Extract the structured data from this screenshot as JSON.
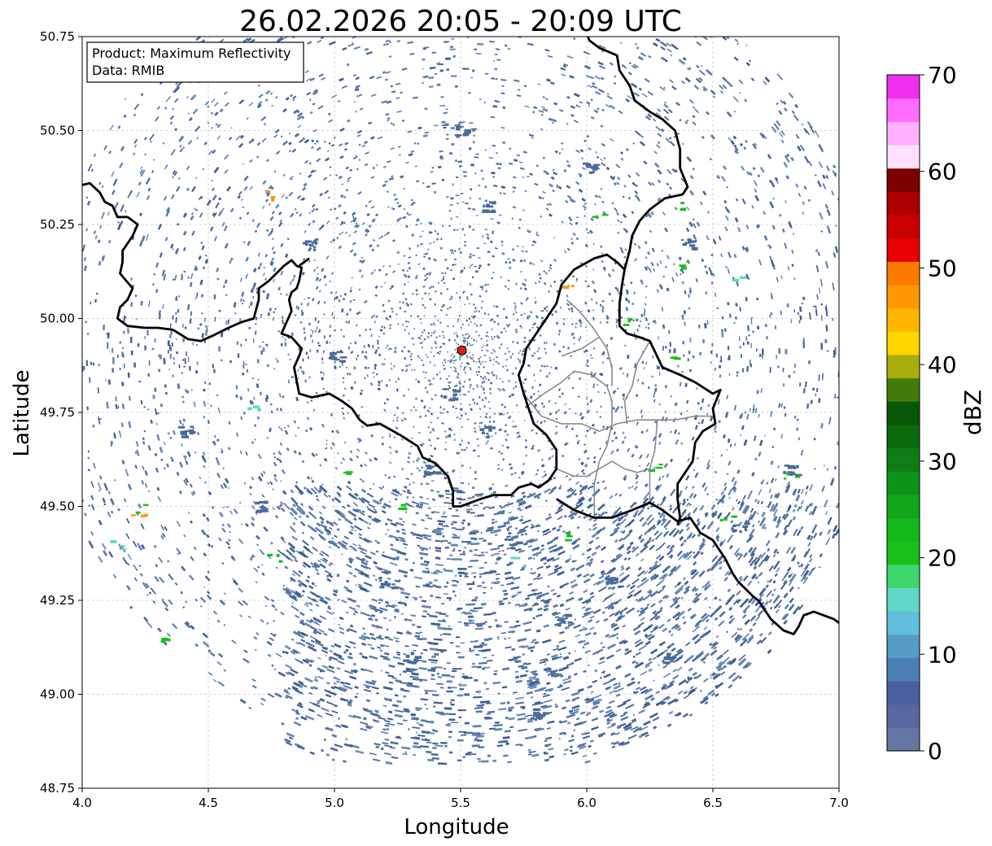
{
  "title": "26.02.2026 20:05 - 20:09 UTC",
  "xlabel": "Longitude",
  "ylabel": "Latitude",
  "info_box": {
    "line1": "Product: Maximum Reflectivity",
    "line2": "Data: RMIB"
  },
  "x_ticks": [
    "4.0",
    "4.5",
    "5.0",
    "5.5",
    "6.0",
    "6.5",
    "7.0"
  ],
  "y_ticks": [
    "50.75",
    "50.50",
    "50.25",
    "50.00",
    "49.75",
    "49.50",
    "49.25",
    "49.00",
    "48.75"
  ],
  "colorbar": {
    "label": "dBZ",
    "ticks": [
      "0",
      "10",
      "20",
      "30",
      "40",
      "50",
      "60",
      "70"
    ],
    "colors": [
      "#6476a3",
      "#5867a0",
      "#4960a0",
      "#4b7eb3",
      "#569cc4",
      "#62bedb",
      "#5fd8c5",
      "#3fd56d",
      "#1ac01a",
      "#13b81a",
      "#10a51a",
      "#0e931a",
      "#0c7e14",
      "#0b6a0c",
      "#075706",
      "#437b0b",
      "#a9ad0b",
      "#fdd500",
      "#fdb500",
      "#fd9800",
      "#fd7a00",
      "#e60000",
      "#c90000",
      "#ac0000",
      "#7d0000",
      "#ffe0ff",
      "#ffb0ff",
      "#ff6cff",
      "#ee2eee"
    ]
  },
  "chart_data": {
    "type": "map",
    "title": "26.02.2026 20:05 - 20:09 UTC",
    "xlabel": "Longitude",
    "ylabel": "Latitude",
    "xlim": [
      4.0,
      7.0
    ],
    "ylim": [
      48.75,
      50.75
    ],
    "grid": true,
    "radar_site": {
      "lon": 5.505,
      "lat": 49.915
    },
    "colorbar_range_dbz": [
      0,
      70
    ],
    "borders": [
      [
        [
          4.0,
          50.355
        ],
        [
          4.03,
          50.36
        ],
        [
          4.07,
          50.335
        ],
        [
          4.09,
          50.31
        ],
        [
          4.12,
          50.3
        ],
        [
          4.14,
          50.27
        ],
        [
          4.18,
          50.27
        ],
        [
          4.2,
          50.26
        ],
        [
          4.22,
          50.25
        ],
        [
          4.2,
          50.22
        ],
        [
          4.18,
          50.2
        ],
        [
          4.16,
          50.18
        ],
        [
          4.16,
          50.15
        ],
        [
          4.15,
          50.12
        ],
        [
          4.2,
          50.08
        ],
        [
          4.18,
          50.05
        ],
        [
          4.15,
          50.03
        ],
        [
          4.14,
          50.0
        ],
        [
          4.18,
          49.98
        ],
        [
          4.25,
          49.975
        ],
        [
          4.3,
          49.975
        ],
        [
          4.36,
          49.97
        ],
        [
          4.42,
          49.945
        ],
        [
          4.47,
          49.94
        ],
        [
          4.52,
          49.955
        ],
        [
          4.58,
          49.975
        ],
        [
          4.63,
          49.99
        ],
        [
          4.68,
          50.0
        ],
        [
          4.7,
          50.05
        ],
        [
          4.7,
          50.08
        ],
        [
          4.74,
          50.1
        ],
        [
          4.8,
          50.14
        ],
        [
          4.83,
          50.155
        ],
        [
          4.85,
          50.14
        ],
        [
          4.87,
          50.135
        ],
        [
          4.86,
          50.1
        ],
        [
          4.85,
          50.08
        ],
        [
          4.83,
          50.07
        ],
        [
          4.82,
          50.05
        ],
        [
          4.83,
          50.02
        ],
        [
          4.81,
          49.99
        ],
        [
          4.79,
          49.96
        ],
        [
          4.83,
          49.95
        ],
        [
          4.87,
          49.92
        ],
        [
          4.86,
          49.9
        ],
        [
          4.84,
          49.87
        ],
        [
          4.86,
          49.8
        ],
        [
          4.91,
          49.79
        ],
        [
          4.98,
          49.8
        ],
        [
          5.03,
          49.78
        ],
        [
          5.07,
          49.76
        ],
        [
          5.1,
          49.73
        ],
        [
          5.13,
          49.715
        ],
        [
          5.18,
          49.72
        ],
        [
          5.26,
          49.69
        ],
        [
          5.33,
          49.66
        ],
        [
          5.35,
          49.63
        ],
        [
          5.4,
          49.615
        ],
        [
          5.45,
          49.58
        ],
        [
          5.47,
          49.54
        ],
        [
          5.47,
          49.5
        ],
        [
          5.5,
          49.5
        ],
        [
          5.54,
          49.51
        ],
        [
          5.58,
          49.52
        ],
        [
          5.63,
          49.53
        ],
        [
          5.7,
          49.53
        ],
        [
          5.73,
          49.55
        ],
        [
          5.78,
          49.56
        ],
        [
          5.81,
          49.55
        ],
        [
          5.85,
          49.57
        ],
        [
          5.88,
          49.6
        ],
        [
          5.88,
          49.65
        ],
        [
          5.84,
          49.69
        ],
        [
          5.79,
          49.72
        ],
        [
          5.77,
          49.76
        ],
        [
          5.75,
          49.8
        ],
        [
          5.73,
          49.85
        ],
        [
          5.75,
          49.88
        ],
        [
          5.76,
          49.92
        ],
        [
          5.8,
          49.96
        ],
        [
          5.85,
          50.01
        ],
        [
          5.88,
          50.04
        ],
        [
          5.9,
          50.09
        ],
        [
          5.95,
          50.13
        ],
        [
          6.03,
          50.16
        ],
        [
          6.08,
          50.17
        ],
        [
          6.12,
          50.15
        ],
        [
          6.15,
          50.13
        ],
        [
          6.17,
          50.18
        ],
        [
          6.18,
          50.22
        ],
        [
          6.21,
          50.26
        ],
        [
          6.25,
          50.29
        ],
        [
          6.31,
          50.32
        ],
        [
          6.38,
          50.33
        ],
        [
          6.4,
          50.35
        ],
        [
          6.37,
          50.4
        ],
        [
          6.37,
          50.45
        ],
        [
          6.35,
          50.5
        ],
        [
          6.3,
          50.53
        ],
        [
          6.25,
          50.55
        ],
        [
          6.19,
          50.58
        ],
        [
          6.17,
          50.62
        ],
        [
          6.13,
          50.66
        ],
        [
          6.12,
          50.7
        ],
        [
          6.05,
          50.72
        ],
        [
          6.01,
          50.74
        ],
        [
          6.0,
          50.76
        ]
      ],
      [
        [
          6.15,
          50.13
        ],
        [
          6.14,
          50.09
        ],
        [
          6.13,
          50.04
        ],
        [
          6.13,
          49.98
        ],
        [
          6.16,
          49.96
        ],
        [
          6.21,
          49.95
        ],
        [
          6.25,
          49.94
        ],
        [
          6.3,
          49.87
        ],
        [
          6.37,
          49.85
        ],
        [
          6.43,
          49.83
        ],
        [
          6.5,
          49.8
        ],
        [
          6.53,
          49.81
        ],
        [
          6.5,
          49.76
        ],
        [
          6.51,
          49.72
        ],
        [
          6.46,
          49.7
        ],
        [
          6.43,
          49.67
        ],
        [
          6.42,
          49.62
        ],
        [
          6.36,
          49.56
        ],
        [
          6.36,
          49.52
        ],
        [
          6.37,
          49.47
        ],
        [
          6.36,
          49.45
        ]
      ],
      [
        [
          5.88,
          49.52
        ],
        [
          5.95,
          49.49
        ],
        [
          6.03,
          49.47
        ],
        [
          6.1,
          49.47
        ],
        [
          6.18,
          49.49
        ],
        [
          6.25,
          49.51
        ],
        [
          6.3,
          49.49
        ],
        [
          6.36,
          49.46
        ],
        [
          6.41,
          49.47
        ],
        [
          6.45,
          49.43
        ],
        [
          6.5,
          49.41
        ],
        [
          6.55,
          49.36
        ],
        [
          6.58,
          49.32
        ],
        [
          6.6,
          49.3
        ],
        [
          6.66,
          49.26
        ],
        [
          6.68,
          49.25
        ],
        [
          6.73,
          49.2
        ],
        [
          6.78,
          49.17
        ],
        [
          6.82,
          49.16
        ],
        [
          6.84,
          49.18
        ],
        [
          6.86,
          49.21
        ],
        [
          6.9,
          49.22
        ],
        [
          6.94,
          49.21
        ],
        [
          6.98,
          49.2
        ],
        [
          7.0,
          49.19
        ]
      ],
      [
        [
          4.86,
          50.14
        ],
        [
          4.88,
          50.15
        ],
        [
          4.9,
          50.16
        ]
      ]
    ],
    "admin_lines": [
      [
        [
          5.92,
          50.05
        ],
        [
          5.97,
          50.02
        ],
        [
          6.02,
          49.98
        ],
        [
          6.05,
          49.95
        ],
        [
          6.08,
          49.92
        ],
        [
          6.1,
          49.87
        ],
        [
          6.1,
          49.82
        ]
      ],
      [
        [
          5.77,
          49.77
        ],
        [
          5.83,
          49.8
        ],
        [
          5.9,
          49.83
        ],
        [
          5.95,
          49.86
        ],
        [
          6.02,
          49.85
        ],
        [
          6.08,
          49.82
        ],
        [
          6.1,
          49.78
        ],
        [
          6.1,
          49.72
        ],
        [
          6.08,
          49.66
        ],
        [
          6.05,
          49.62
        ],
        [
          6.03,
          49.56
        ],
        [
          6.03,
          49.47
        ]
      ],
      [
        [
          5.75,
          49.8
        ],
        [
          5.82,
          49.74
        ],
        [
          5.9,
          49.72
        ],
        [
          5.98,
          49.72
        ],
        [
          6.05,
          49.7
        ],
        [
          6.12,
          49.72
        ],
        [
          6.2,
          49.73
        ],
        [
          6.28,
          49.73
        ],
        [
          6.35,
          49.73
        ],
        [
          6.43,
          49.74
        ],
        [
          6.5,
          49.74
        ]
      ],
      [
        [
          5.9,
          49.9
        ],
        [
          5.98,
          49.92
        ],
        [
          6.05,
          49.95
        ]
      ],
      [
        [
          6.25,
          49.94
        ],
        [
          6.2,
          49.88
        ],
        [
          6.18,
          49.82
        ],
        [
          6.15,
          49.78
        ],
        [
          6.16,
          49.72
        ]
      ],
      [
        [
          6.28,
          49.73
        ],
        [
          6.27,
          49.65
        ],
        [
          6.25,
          49.6
        ],
        [
          6.25,
          49.51
        ]
      ],
      [
        [
          5.88,
          49.6
        ],
        [
          5.95,
          49.58
        ],
        [
          6.0,
          49.58
        ],
        [
          6.05,
          49.6
        ],
        [
          6.1,
          49.62
        ],
        [
          6.15,
          49.6
        ],
        [
          6.2,
          49.59
        ],
        [
          6.25,
          49.6
        ]
      ]
    ],
    "echoes_by_dbz_class": [
      {
        "dbz": 3,
        "color": "#4a6a9a",
        "pts": [
          [
            5.45,
            49.8
          ],
          [
            5.6,
            49.7
          ],
          [
            5.38,
            49.6
          ],
          [
            5.7,
            49.4
          ],
          [
            5.2,
            49.3
          ],
          [
            5.9,
            49.2
          ],
          [
            6.3,
            49.1
          ],
          [
            5.0,
            49.9
          ],
          [
            4.9,
            50.2
          ],
          [
            5.6,
            50.3
          ],
          [
            6.0,
            50.4
          ],
          [
            4.7,
            49.5
          ],
          [
            5.3,
            49.1
          ],
          [
            5.8,
            48.95
          ],
          [
            6.6,
            49.45
          ],
          [
            6.8,
            49.6
          ],
          [
            4.4,
            49.7
          ],
          [
            5.5,
            50.5
          ],
          [
            6.4,
            50.2
          ],
          [
            6.1,
            49.3
          ]
        ]
      },
      {
        "dbz": 22,
        "color": "#1ac01a",
        "pts": [
          [
            6.35,
            50.3
          ],
          [
            6.15,
            50.0
          ],
          [
            6.27,
            49.6
          ],
          [
            5.05,
            49.58
          ],
          [
            6.38,
            50.14
          ],
          [
            5.9,
            49.42
          ],
          [
            6.55,
            49.48
          ],
          [
            6.05,
            50.27
          ],
          [
            6.8,
            49.58
          ],
          [
            6.32,
            49.9
          ],
          [
            4.24,
            49.5
          ],
          [
            4.34,
            49.14
          ],
          [
            4.76,
            49.37
          ],
          [
            5.26,
            49.5
          ]
        ]
      },
      {
        "dbz": 18,
        "color": "#5fd8c5",
        "pts": [
          [
            4.13,
            49.4
          ],
          [
            5.72,
            49.36
          ],
          [
            6.6,
            50.12
          ],
          [
            4.67,
            49.77
          ]
        ]
      },
      {
        "dbz": 45,
        "color": "#fd9800",
        "pts": [
          [
            5.92,
            50.09
          ],
          [
            4.72,
            50.33
          ],
          [
            4.22,
            49.48
          ]
        ]
      }
    ]
  }
}
